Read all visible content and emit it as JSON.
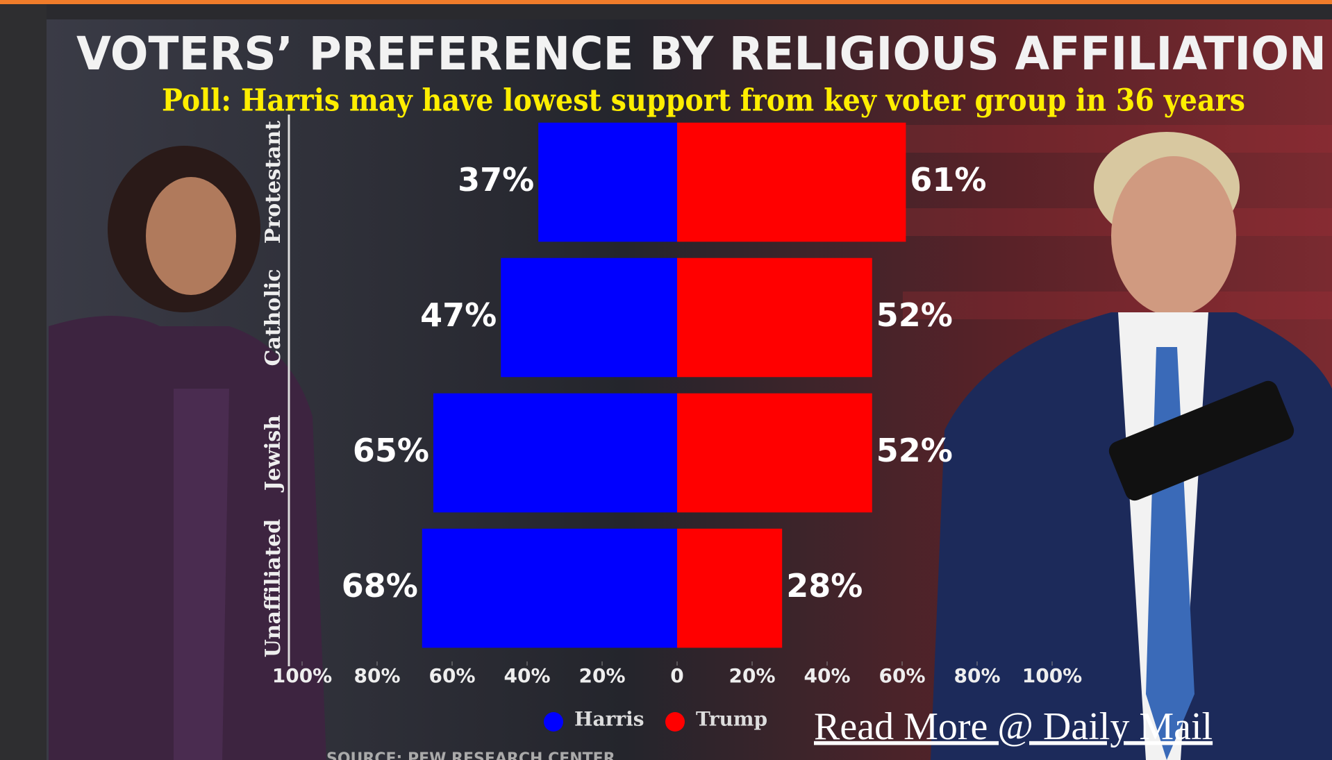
{
  "chart_data": {
    "type": "bar",
    "title": "VOTERS’ PREFERENCE BY RELIGIOUS AFFILIATION",
    "subtitle": "Poll: Harris may have lowest support from key voter group in 36 years",
    "categories": [
      "Protestant",
      "Catholic",
      "Jewish",
      "Unaffiliated"
    ],
    "series": [
      {
        "name": "Harris",
        "color": "#0000ff",
        "values": [
          37,
          47,
          65,
          68
        ],
        "value_labels": [
          "37%",
          "47%",
          "65%",
          "68%"
        ]
      },
      {
        "name": "Trump",
        "color": "#ff0000",
        "values": [
          61,
          52,
          52,
          28
        ],
        "value_labels": [
          "61%",
          "52%",
          "52%",
          "28%"
        ]
      }
    ],
    "xlim": [
      -100,
      100
    ],
    "xticks": [
      {
        "value": -100,
        "label": "100%"
      },
      {
        "value": -80,
        "label": "80%"
      },
      {
        "value": -60,
        "label": "60%"
      },
      {
        "value": -40,
        "label": "40%"
      },
      {
        "value": -20,
        "label": "20%"
      },
      0,
      {
        "value": 20,
        "label": "20%"
      },
      {
        "value": 40,
        "label": "40%"
      },
      {
        "value": 60,
        "label": "60%"
      },
      {
        "value": 80,
        "label": "80%"
      },
      {
        "value": 100,
        "label": "100%"
      }
    ],
    "source": "SOURCE: PEW RESEARCH CENTER",
    "link": "Read More @ Daily Mail"
  }
}
